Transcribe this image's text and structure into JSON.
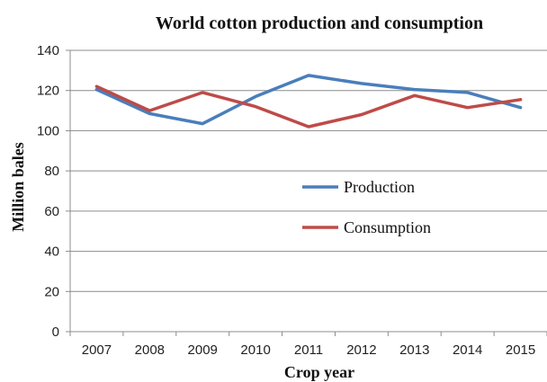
{
  "chart_data": {
    "type": "line",
    "title": "World cotton production and consumption",
    "xlabel": "Crop year",
    "ylabel": "Million bales",
    "categories": [
      "2007",
      "2008",
      "2009",
      "2010",
      "2011",
      "2012",
      "2013",
      "2014",
      "2015"
    ],
    "ylim": [
      0,
      140
    ],
    "yticks": [
      0,
      20,
      40,
      60,
      80,
      100,
      120,
      140
    ],
    "grid": true,
    "legend_position": "center-right",
    "series": [
      {
        "name": "Production",
        "color": "#4a7ebb",
        "values": [
          120.5,
          108.5,
          103.5,
          117,
          127.5,
          123.5,
          120.5,
          119,
          111.5
        ]
      },
      {
        "name": "Consumption",
        "color": "#be4b48",
        "values": [
          122,
          110,
          119,
          112,
          102,
          108,
          117.5,
          111.5,
          115.5
        ]
      }
    ]
  }
}
